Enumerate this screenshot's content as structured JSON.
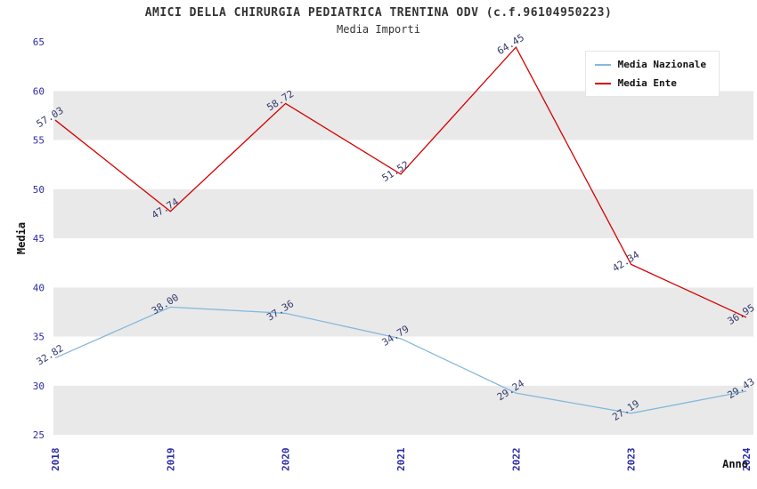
{
  "header": {
    "title": "AMICI DELLA CHIRURGIA PEDIATRICA TRENTINA ODV (c.f.96104950223)",
    "subtitle": "Media Importi"
  },
  "chart_data": {
    "type": "line",
    "categories": [
      "2018",
      "2019",
      "2020",
      "2021",
      "2022",
      "2023",
      "2024"
    ],
    "series": [
      {
        "name": "Media Nazionale",
        "color": "#85b8dc",
        "values": [
          32.82,
          38.0,
          37.36,
          34.79,
          29.24,
          27.19,
          29.43
        ]
      },
      {
        "name": "Media Ente",
        "color": "#d40000",
        "values": [
          57.03,
          47.74,
          58.72,
          51.52,
          64.45,
          42.34,
          36.95
        ]
      }
    ],
    "title": "AMICI DELLA CHIRURGIA PEDIATRICA TRENTINA ODV (c.f.96104950223)",
    "subtitle": "Media Importi",
    "xlabel": "Anno",
    "ylabel": "Media",
    "ylim": [
      25,
      65
    ],
    "ytick_step": 5,
    "yticks": [
      25,
      30,
      35,
      40,
      45,
      50,
      55,
      60,
      65
    ],
    "grid": false,
    "legend_position": "top-right",
    "band_colors": [
      "#e9e9e9",
      "#ffffff"
    ],
    "tick_label_color": "#2b2ba8",
    "point_label_color": "#333a6e",
    "axis_title_color": "#111111"
  }
}
